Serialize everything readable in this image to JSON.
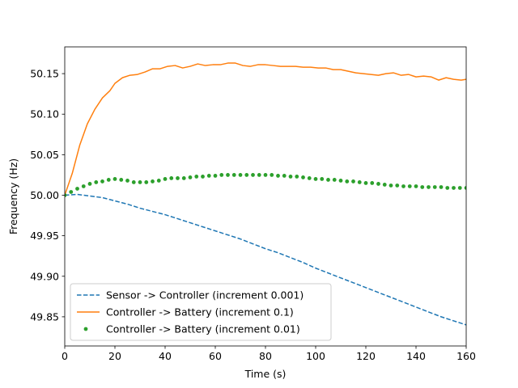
{
  "chart_data": {
    "type": "line",
    "title": "",
    "xlabel": "Time (s)",
    "ylabel": "Frequency (Hz)",
    "xlim": [
      0,
      160
    ],
    "ylim": [
      49.814,
      50.183
    ],
    "xticks": [
      0,
      20,
      40,
      60,
      80,
      100,
      120,
      140,
      160
    ],
    "xtick_labels": [
      "0",
      "20",
      "40",
      "60",
      "80",
      "100",
      "120",
      "140",
      "160"
    ],
    "yticks": [
      49.85,
      49.9,
      49.95,
      50.0,
      50.05,
      50.1,
      50.15
    ],
    "ytick_labels": [
      "49.85",
      "49.90",
      "49.95",
      "50.00",
      "50.05",
      "50.10",
      "50.15"
    ],
    "grid": false,
    "legend_position": "lower-left",
    "series": [
      {
        "name": "Sensor -> Controller (increment 0.001)",
        "style": "dashed",
        "color": "#1f77b4",
        "points": [
          [
            0,
            50.0
          ],
          [
            5,
            50.001
          ],
          [
            10,
            49.999
          ],
          [
            15,
            49.997
          ],
          [
            20,
            49.993
          ],
          [
            25,
            49.989
          ],
          [
            30,
            49.984
          ],
          [
            35,
            49.98
          ],
          [
            40,
            49.976
          ],
          [
            45,
            49.971
          ],
          [
            50,
            49.966
          ],
          [
            55,
            49.961
          ],
          [
            60,
            49.956
          ],
          [
            65,
            49.951
          ],
          [
            70,
            49.946
          ],
          [
            75,
            49.94
          ],
          [
            80,
            49.934
          ],
          [
            85,
            49.929
          ],
          [
            90,
            49.923
          ],
          [
            95,
            49.917
          ],
          [
            100,
            49.91
          ],
          [
            105,
            49.904
          ],
          [
            110,
            49.898
          ],
          [
            115,
            49.892
          ],
          [
            120,
            49.886
          ],
          [
            125,
            49.88
          ],
          [
            130,
            49.874
          ],
          [
            135,
            49.868
          ],
          [
            140,
            49.862
          ],
          [
            145,
            49.856
          ],
          [
            150,
            49.85
          ],
          [
            155,
            49.845
          ],
          [
            160,
            49.84
          ]
        ]
      },
      {
        "name": "Controller -> Battery (increment 0.1)",
        "style": "solid",
        "color": "#ff7f0e",
        "points": [
          [
            0,
            50.0
          ],
          [
            3,
            50.027
          ],
          [
            6,
            50.062
          ],
          [
            9,
            50.088
          ],
          [
            12,
            50.106
          ],
          [
            15,
            50.12
          ],
          [
            18,
            50.129
          ],
          [
            20,
            50.138
          ],
          [
            23,
            50.145
          ],
          [
            26,
            50.148
          ],
          [
            29,
            50.149
          ],
          [
            32,
            50.152
          ],
          [
            35,
            50.156
          ],
          [
            38,
            50.156
          ],
          [
            41,
            50.159
          ],
          [
            44,
            50.16
          ],
          [
            47,
            50.157
          ],
          [
            50,
            50.159
          ],
          [
            53,
            50.162
          ],
          [
            56,
            50.16
          ],
          [
            59,
            50.161
          ],
          [
            62,
            50.161
          ],
          [
            65,
            50.163
          ],
          [
            68,
            50.163
          ],
          [
            71,
            50.16
          ],
          [
            74,
            50.159
          ],
          [
            77,
            50.161
          ],
          [
            80,
            50.161
          ],
          [
            83,
            50.16
          ],
          [
            86,
            50.159
          ],
          [
            89,
            50.159
          ],
          [
            92,
            50.159
          ],
          [
            95,
            50.158
          ],
          [
            98,
            50.158
          ],
          [
            101,
            50.157
          ],
          [
            104,
            50.157
          ],
          [
            107,
            50.155
          ],
          [
            110,
            50.155
          ],
          [
            113,
            50.153
          ],
          [
            116,
            50.151
          ],
          [
            119,
            50.15
          ],
          [
            122,
            50.149
          ],
          [
            125,
            50.148
          ],
          [
            128,
            50.15
          ],
          [
            131,
            50.151
          ],
          [
            134,
            50.148
          ],
          [
            137,
            50.149
          ],
          [
            140,
            50.146
          ],
          [
            143,
            50.147
          ],
          [
            146,
            50.146
          ],
          [
            149,
            50.142
          ],
          [
            152,
            50.145
          ],
          [
            155,
            50.143
          ],
          [
            158,
            50.142
          ],
          [
            160,
            50.143
          ]
        ]
      },
      {
        "name": "Controller -> Battery (increment 0.01)",
        "style": "dots",
        "color": "#2ca02c",
        "points": [
          [
            0,
            50.0
          ],
          [
            2.5,
            50.004
          ],
          [
            5,
            50.008
          ],
          [
            7.5,
            50.011
          ],
          [
            10,
            50.014
          ],
          [
            12.5,
            50.016
          ],
          [
            15,
            50.017
          ],
          [
            17.5,
            50.019
          ],
          [
            20,
            50.02
          ],
          [
            22.5,
            50.019
          ],
          [
            25,
            50.018
          ],
          [
            27.5,
            50.016
          ],
          [
            30,
            50.016
          ],
          [
            32.5,
            50.016
          ],
          [
            35,
            50.017
          ],
          [
            37.5,
            50.018
          ],
          [
            40,
            50.02
          ],
          [
            42.5,
            50.021
          ],
          [
            45,
            50.021
          ],
          [
            47.5,
            50.021
          ],
          [
            50,
            50.022
          ],
          [
            52.5,
            50.023
          ],
          [
            55,
            50.023
          ],
          [
            57.5,
            50.024
          ],
          [
            60,
            50.024
          ],
          [
            62.5,
            50.025
          ],
          [
            65,
            50.025
          ],
          [
            67.5,
            50.025
          ],
          [
            70,
            50.025
          ],
          [
            72.5,
            50.025
          ],
          [
            75,
            50.025
          ],
          [
            77.5,
            50.025
          ],
          [
            80,
            50.025
          ],
          [
            82.5,
            50.025
          ],
          [
            85,
            50.024
          ],
          [
            87.5,
            50.024
          ],
          [
            90,
            50.023
          ],
          [
            92.5,
            50.023
          ],
          [
            95,
            50.022
          ],
          [
            97.5,
            50.021
          ],
          [
            100,
            50.02
          ],
          [
            102.5,
            50.02
          ],
          [
            105,
            50.019
          ],
          [
            107.5,
            50.019
          ],
          [
            110,
            50.018
          ],
          [
            112.5,
            50.017
          ],
          [
            115,
            50.017
          ],
          [
            117.5,
            50.016
          ],
          [
            120,
            50.015
          ],
          [
            122.5,
            50.015
          ],
          [
            125,
            50.014
          ],
          [
            127.5,
            50.013
          ],
          [
            130,
            50.012
          ],
          [
            132.5,
            50.012
          ],
          [
            135,
            50.011
          ],
          [
            137.5,
            50.011
          ],
          [
            140,
            50.011
          ],
          [
            142.5,
            50.01
          ],
          [
            145,
            50.01
          ],
          [
            147.5,
            50.01
          ],
          [
            150,
            50.01
          ],
          [
            152.5,
            50.009
          ],
          [
            155,
            50.009
          ],
          [
            157.5,
            50.009
          ],
          [
            160,
            50.009
          ]
        ]
      }
    ]
  }
}
